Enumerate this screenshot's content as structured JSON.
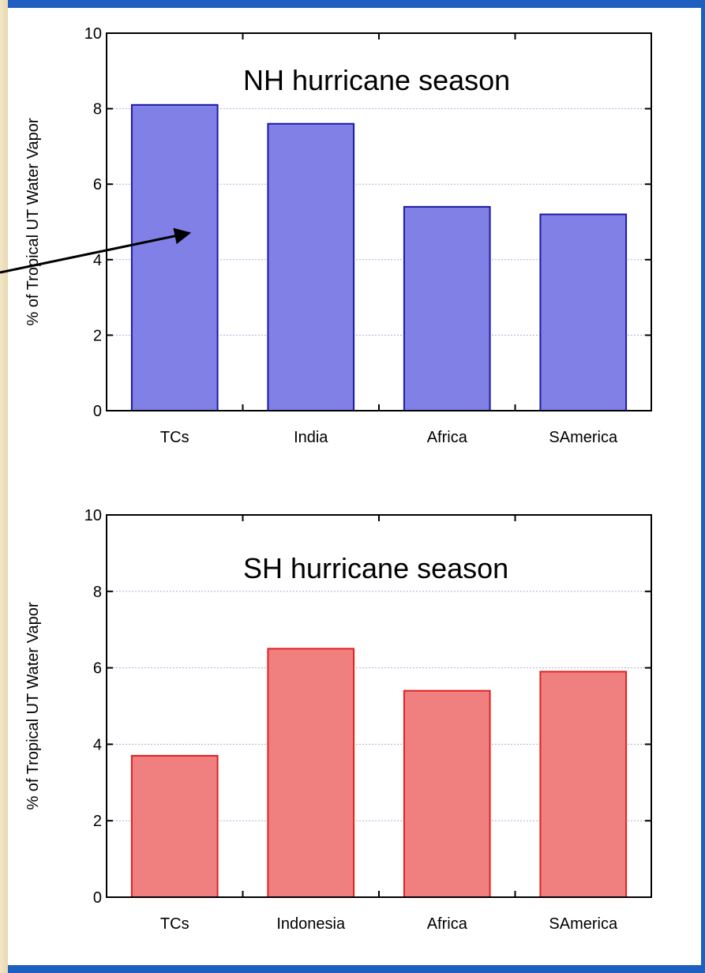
{
  "chart_data": [
    {
      "type": "bar",
      "title": "NH hurricane season",
      "ylabel": "% of Tropical UT Water Vapor",
      "xlabel": "",
      "categories": [
        "TCs",
        "India",
        "Africa",
        "SAmerica"
      ],
      "values": [
        8.1,
        7.6,
        5.4,
        5.2
      ],
      "ylim": [
        0,
        10
      ],
      "yticks": [
        0,
        2,
        4,
        6,
        8,
        10
      ],
      "grid": true,
      "color": "#8080e6",
      "edge_color": "#1a1aa6",
      "annotation": "arrow pointing to TCs bar"
    },
    {
      "type": "bar",
      "title": "SH hurricane season",
      "ylabel": "% of Tropical UT Water Vapor",
      "xlabel": "",
      "categories": [
        "TCs",
        "Indonesia",
        "Africa",
        "SAmerica"
      ],
      "values": [
        3.7,
        6.5,
        5.4,
        5.9
      ],
      "ylim": [
        0,
        10
      ],
      "yticks": [
        0,
        2,
        4,
        6,
        8,
        10
      ],
      "grid": true,
      "color": "#f08080",
      "edge_color": "#e02020"
    }
  ]
}
